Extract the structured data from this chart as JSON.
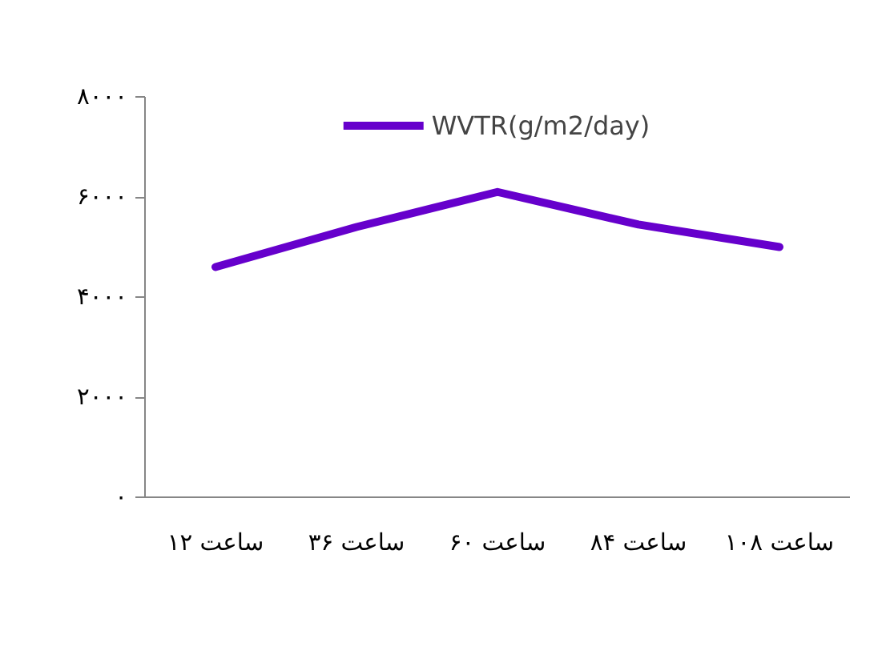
{
  "chart_data": {
    "type": "line",
    "categories": [
      "۱۲ ساعت",
      "۳۶ ساعت",
      "۶۰ ساعت",
      "۸۴ ساعت",
      "۱۰۸ ساعت"
    ],
    "series": [
      {
        "name": "WVTR(g/m2/day)",
        "color": "#6600cc",
        "values": [
          4600,
          5400,
          6100,
          5450,
          5000
        ]
      }
    ],
    "ylim": [
      0,
      8000
    ],
    "yticks": [
      {
        "value": 0,
        "label": "۰"
      },
      {
        "value": 2000,
        "label": "۲۰۰۰"
      },
      {
        "value": 4000,
        "label": "۴۰۰۰"
      },
      {
        "value": 6000,
        "label": "۶۰۰۰"
      },
      {
        "value": 8000,
        "label": "۸۰۰۰"
      }
    ],
    "grid": false,
    "legend": "top",
    "marker": "none",
    "line_style": "solid"
  }
}
